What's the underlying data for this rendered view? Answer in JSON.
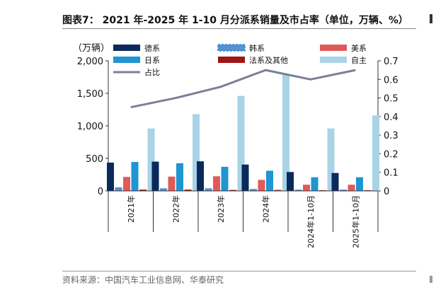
{
  "title": "图表7：  2021 年-2025 年 1-10 月分派系销量及市占率（单位，万辆、%）",
  "source": "资料来源：中国汽车工业信息网、华泰研究",
  "colors": {
    "de": "#0b2a5c",
    "han": "#5b8fd0",
    "mei": "#e05a5a",
    "ri": "#1f95d2",
    "fa": "#a01515",
    "zi": "#a9d3e6",
    "share": "#7a7f99"
  },
  "chart_data": {
    "type": "bar",
    "categories": [
      "2021年",
      "2022年",
      "2023年",
      "2024年",
      "2024年1-10月",
      "2025年1-10月"
    ],
    "left_axis_unit": "（万辆）",
    "ylim_left": [
      0,
      2000
    ],
    "yticks_left": [
      "0",
      "500",
      "1,000",
      "1,500",
      "2,000"
    ],
    "ylim_right": [
      0,
      0.7
    ],
    "yticks_right": [
      "0",
      "0.1",
      "0.2",
      "0.3",
      "0.4",
      "0.5",
      "0.6",
      "0.7"
    ],
    "series": [
      {
        "name": "德系",
        "key": "de",
        "values": [
          435,
          450,
          455,
          405,
          290,
          275
        ]
      },
      {
        "name": "韩系",
        "key": "han",
        "values": [
          55,
          40,
          40,
          30,
          20,
          20
        ]
      },
      {
        "name": "美系",
        "key": "mei",
        "values": [
          215,
          220,
          225,
          170,
          95,
          95
        ]
      },
      {
        "name": "日系",
        "key": "ri",
        "values": [
          445,
          425,
          370,
          310,
          210,
          210
        ]
      },
      {
        "name": "法系及其他",
        "key": "fa",
        "values": [
          20,
          20,
          15,
          15,
          10,
          10
        ]
      },
      {
        "name": "自主",
        "key": "zi",
        "values": [
          960,
          1180,
          1460,
          1790,
          960,
          1160
        ]
      }
    ],
    "line": {
      "name": "占比",
      "key": "share",
      "values": [
        0.45,
        0.5,
        0.56,
        0.65,
        0.6,
        0.65
      ]
    },
    "legend_rows": [
      [
        "德系",
        "韩系",
        "美系"
      ],
      [
        "日系",
        "法系及其他",
        "自主"
      ],
      [
        "占比"
      ]
    ]
  }
}
